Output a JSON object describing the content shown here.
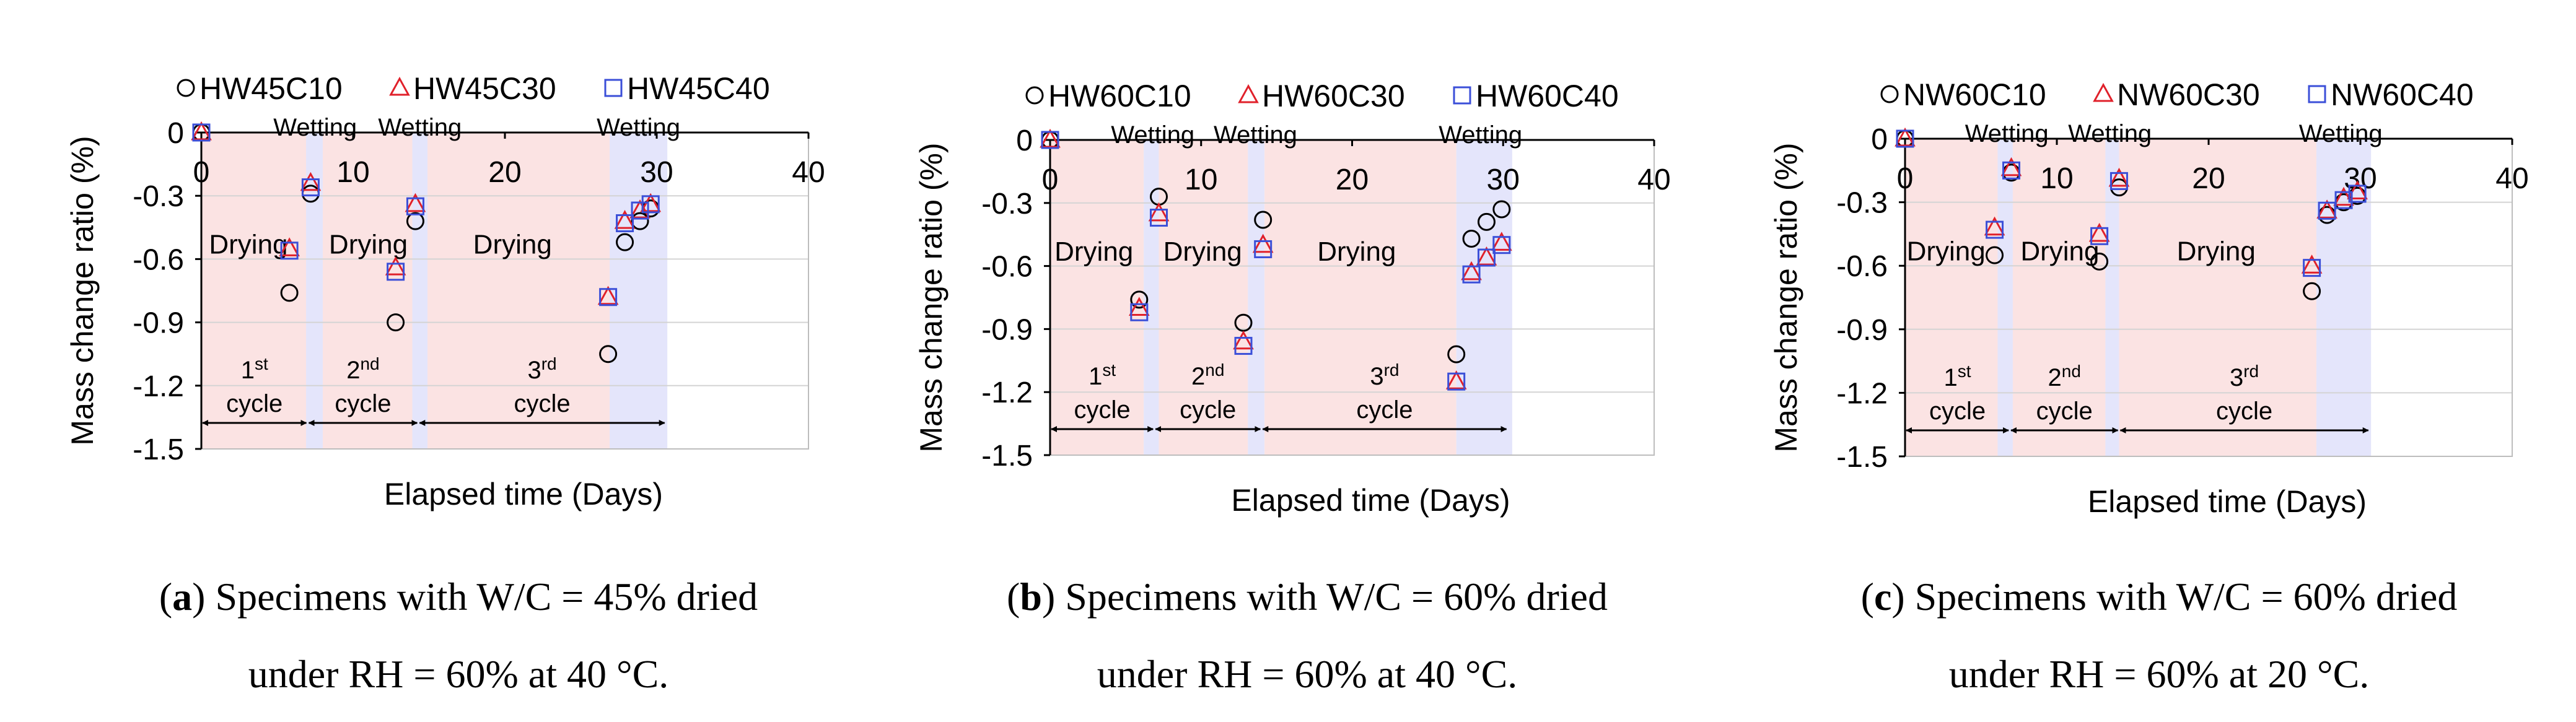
{
  "chart_data": [
    {
      "type": "scatter",
      "caption": {
        "letter": "a",
        "line1": "Specimens with W/C = 45% dried",
        "line2": "under RH = 60% at 40 °C."
      },
      "xlabel": "Elapsed time (Days)",
      "ylabel": "Mass change ratio (%)",
      "xlim": [
        0,
        40
      ],
      "ylim": [
        -1.5,
        0
      ],
      "x_ticks": [
        0,
        10,
        20,
        30,
        40
      ],
      "y_ticks": [
        0,
        -0.3,
        -0.6,
        -0.9,
        -1.2,
        -1.5
      ],
      "x_tick_labels": [
        "0",
        "10",
        "20",
        "30",
        "40"
      ],
      "y_tick_labels": [
        "0",
        "-0.3",
        "-0.6",
        "-0.9",
        "-1.2",
        "-1.5"
      ],
      "grid": true,
      "legend_position": "top",
      "series": [
        {
          "name": "HW45C10",
          "marker": "circle",
          "color": "#000000",
          "x": [
            0,
            5.8,
            7.2,
            12.8,
            14.1,
            26.8,
            27.9,
            28.9,
            29.6
          ],
          "y": [
            0,
            -0.76,
            -0.29,
            -0.9,
            -0.42,
            -1.05,
            -0.52,
            -0.42,
            -0.36
          ]
        },
        {
          "name": "HW45C30",
          "marker": "triangle",
          "color": "#e0202a",
          "x": [
            0,
            5.8,
            7.2,
            12.8,
            14.1,
            26.8,
            27.9,
            28.9,
            29.6
          ],
          "y": [
            0,
            -0.55,
            -0.24,
            -0.64,
            -0.34,
            -0.78,
            -0.42,
            -0.37,
            -0.34
          ]
        },
        {
          "name": "HW45C40",
          "marker": "square",
          "color": "#3b4fd8",
          "x": [
            0,
            5.8,
            7.2,
            12.8,
            14.1,
            26.8,
            27.9,
            28.9,
            29.6
          ],
          "y": [
            0,
            -0.56,
            -0.26,
            -0.66,
            -0.35,
            -0.78,
            -0.43,
            -0.37,
            -0.34
          ]
        }
      ],
      "shaded_regions": [
        {
          "phase": "drying",
          "from": 0,
          "to": 6.9
        },
        {
          "phase": "wetting",
          "from": 6.9,
          "to": 8.0
        },
        {
          "phase": "drying",
          "from": 8.0,
          "to": 13.9
        },
        {
          "phase": "wetting",
          "from": 13.9,
          "to": 14.9
        },
        {
          "phase": "drying",
          "from": 14.9,
          "to": 26.9
        },
        {
          "phase": "wetting",
          "from": 26.9,
          "to": 30.7
        }
      ],
      "annotations": [
        {
          "text": "Drying",
          "x": 3.1,
          "y": -0.53
        },
        {
          "text": "Drying",
          "x": 11.0,
          "y": -0.53
        },
        {
          "text": "Drying",
          "x": 20.5,
          "y": -0.53
        },
        {
          "text": "Wetting",
          "x": 7.5,
          "y": 0.08
        },
        {
          "text": "Wetting",
          "x": 14.4,
          "y": 0.08
        },
        {
          "text": "Wetting",
          "x": 28.8,
          "y": 0.08
        }
      ],
      "cycles": [
        {
          "number": "1",
          "suffix": "st",
          "word": "cycle",
          "from": 0,
          "to": 7.0
        },
        {
          "number": "2",
          "suffix": "nd",
          "word": "cycle",
          "from": 7.0,
          "to": 14.3
        },
        {
          "number": "3",
          "suffix": "rd",
          "word": "cycle",
          "from": 14.3,
          "to": 30.6
        }
      ]
    },
    {
      "type": "scatter",
      "caption": {
        "letter": "b",
        "line1": "Specimens with W/C = 60% dried",
        "line2": "under RH = 60% at 40 °C."
      },
      "xlabel": "Elapsed time (Days)",
      "ylabel": "Mass change ratio (%)",
      "xlim": [
        0,
        40
      ],
      "ylim": [
        -1.5,
        0
      ],
      "x_ticks": [
        0,
        10,
        20,
        30,
        40
      ],
      "y_ticks": [
        0,
        -0.3,
        -0.6,
        -0.9,
        -1.2,
        -1.5
      ],
      "x_tick_labels": [
        "0",
        "10",
        "20",
        "30",
        "40"
      ],
      "y_tick_labels": [
        "0",
        "-0.3",
        "-0.6",
        "-0.9",
        "-1.2",
        "-1.5"
      ],
      "grid": true,
      "legend_position": "top",
      "series": [
        {
          "name": "HW60C10",
          "marker": "circle",
          "color": "#000000",
          "x": [
            0,
            5.9,
            7.2,
            12.8,
            14.1,
            26.9,
            27.9,
            28.9,
            29.9
          ],
          "y": [
            0,
            -0.76,
            -0.27,
            -0.87,
            -0.38,
            -1.02,
            -0.47,
            -0.39,
            -0.33
          ]
        },
        {
          "name": "HW60C30",
          "marker": "triangle",
          "color": "#e0202a",
          "x": [
            0,
            5.9,
            7.2,
            12.8,
            14.1,
            26.9,
            27.9,
            28.9,
            29.9
          ],
          "y": [
            0,
            -0.8,
            -0.35,
            -0.96,
            -0.5,
            -1.15,
            -0.63,
            -0.56,
            -0.49
          ]
        },
        {
          "name": "HW60C40",
          "marker": "square",
          "color": "#3b4fd8",
          "x": [
            0,
            5.9,
            7.2,
            12.8,
            14.1,
            26.9,
            27.9,
            28.9,
            29.9
          ],
          "y": [
            0,
            -0.82,
            -0.37,
            -0.98,
            -0.52,
            -1.15,
            -0.64,
            -0.56,
            -0.5
          ]
        }
      ],
      "shaded_regions": [
        {
          "phase": "drying",
          "from": 0,
          "to": 6.2
        },
        {
          "phase": "wetting",
          "from": 6.2,
          "to": 7.2
        },
        {
          "phase": "drying",
          "from": 7.2,
          "to": 13.1
        },
        {
          "phase": "wetting",
          "from": 13.1,
          "to": 14.2
        },
        {
          "phase": "drying",
          "from": 14.2,
          "to": 26.9
        },
        {
          "phase": "wetting",
          "from": 26.9,
          "to": 30.6
        }
      ],
      "annotations": [
        {
          "text": "Drying",
          "x": 2.9,
          "y": -0.53
        },
        {
          "text": "Drying",
          "x": 10.1,
          "y": -0.53
        },
        {
          "text": "Drying",
          "x": 20.3,
          "y": -0.53
        },
        {
          "text": "Wetting",
          "x": 6.8,
          "y": 0.08
        },
        {
          "text": "Wetting",
          "x": 13.6,
          "y": 0.08
        },
        {
          "text": "Wetting",
          "x": 28.5,
          "y": 0.08
        }
      ],
      "cycles": [
        {
          "number": "1",
          "suffix": "st",
          "word": "cycle",
          "from": 0,
          "to": 6.9
        },
        {
          "number": "2",
          "suffix": "nd",
          "word": "cycle",
          "from": 6.9,
          "to": 14.0
        },
        {
          "number": "3",
          "suffix": "rd",
          "word": "cycle",
          "from": 14.0,
          "to": 30.3
        }
      ]
    },
    {
      "type": "scatter",
      "caption": {
        "letter": "c",
        "line1": "Specimens with W/C = 60% dried",
        "line2": "under RH = 60% at 20 °C."
      },
      "xlabel": "Elapsed time (Days)",
      "ylabel": "Mass change ratio (%)",
      "xlim": [
        0,
        40
      ],
      "ylim": [
        -1.5,
        0
      ],
      "x_ticks": [
        0,
        10,
        20,
        30,
        40
      ],
      "y_ticks": [
        0,
        -0.3,
        -0.6,
        -0.9,
        -1.2,
        -1.5
      ],
      "x_tick_labels": [
        "0",
        "10",
        "20",
        "30",
        "40"
      ],
      "y_tick_labels": [
        "0",
        "-0.3",
        "-0.6",
        "-0.9",
        "-1.2",
        "-1.5"
      ],
      "grid": true,
      "legend_position": "top",
      "series": [
        {
          "name": "NW60C10",
          "marker": "circle",
          "color": "#000000",
          "x": [
            0,
            5.9,
            7.0,
            12.8,
            14.1,
            26.8,
            27.8,
            28.9,
            29.8
          ],
          "y": [
            0,
            -0.55,
            -0.16,
            -0.58,
            -0.23,
            -0.72,
            -0.36,
            -0.3,
            -0.27
          ]
        },
        {
          "name": "NW60C30",
          "marker": "triangle",
          "color": "#e0202a",
          "x": [
            0,
            5.9,
            7.0,
            12.8,
            14.1,
            26.8,
            27.8,
            28.9,
            29.8
          ],
          "y": [
            0,
            -0.42,
            -0.14,
            -0.45,
            -0.19,
            -0.6,
            -0.34,
            -0.28,
            -0.25
          ]
        },
        {
          "name": "NW60C40",
          "marker": "square",
          "color": "#3b4fd8",
          "x": [
            0,
            5.9,
            7.0,
            12.8,
            14.1,
            26.8,
            27.8,
            28.9,
            29.8
          ],
          "y": [
            0,
            -0.43,
            -0.15,
            -0.46,
            -0.2,
            -0.61,
            -0.34,
            -0.29,
            -0.26
          ]
        }
      ],
      "shaded_regions": [
        {
          "phase": "drying",
          "from": 0,
          "to": 6.1
        },
        {
          "phase": "wetting",
          "from": 6.1,
          "to": 7.1
        },
        {
          "phase": "drying",
          "from": 7.1,
          "to": 13.2
        },
        {
          "phase": "wetting",
          "from": 13.2,
          "to": 14.1
        },
        {
          "phase": "drying",
          "from": 14.1,
          "to": 27.1
        },
        {
          "phase": "wetting",
          "from": 27.1,
          "to": 30.7
        }
      ],
      "annotations": [
        {
          "text": "Drying",
          "x": 2.7,
          "y": -0.53
        },
        {
          "text": "Drying",
          "x": 10.2,
          "y": -0.53
        },
        {
          "text": "Drying",
          "x": 20.5,
          "y": -0.53
        },
        {
          "text": "Wetting",
          "x": 6.7,
          "y": 0.08
        },
        {
          "text": "Wetting",
          "x": 13.5,
          "y": 0.08
        },
        {
          "text": "Wetting",
          "x": 28.7,
          "y": 0.08
        }
      ],
      "cycles": [
        {
          "number": "1",
          "suffix": "st",
          "word": "cycle",
          "from": 0,
          "to": 6.9
        },
        {
          "number": "2",
          "suffix": "nd",
          "word": "cycle",
          "from": 6.9,
          "to": 14.1
        },
        {
          "number": "3",
          "suffix": "rd",
          "word": "cycle",
          "from": 14.1,
          "to": 30.6
        }
      ]
    }
  ],
  "colors": {
    "drying_fill": "#fbe3e3",
    "wetting_fill": "#e4e5fb",
    "grid": "#d4d4d4",
    "axis": "#000000"
  }
}
